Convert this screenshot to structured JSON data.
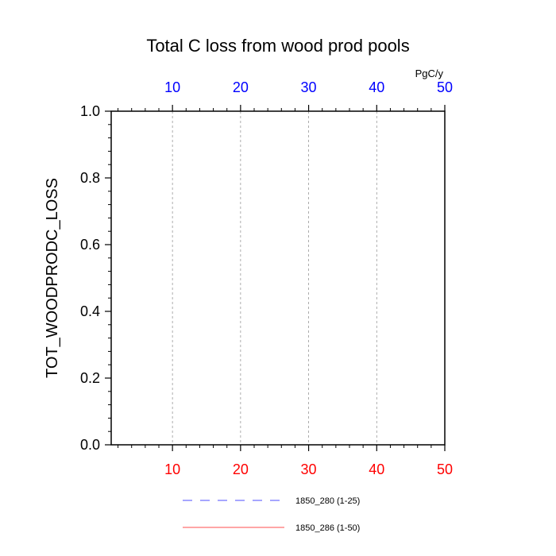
{
  "chart_data": {
    "type": "line",
    "title": "Total C loss from wood prod pools",
    "ylabel": "TOT_WOODPRODC_LOSS",
    "units": "PgC/y",
    "xlim": [
      1,
      50
    ],
    "ylim": [
      0.0,
      1.0
    ],
    "x_ticks_bottom": [
      10,
      20,
      30,
      40,
      50
    ],
    "x_ticks_top": [
      10,
      20,
      30,
      40,
      50
    ],
    "y_ticks": [
      "0.0",
      "0.2",
      "0.4",
      "0.6",
      "0.8",
      "1.0"
    ],
    "grid": "vertical dashed at major x ticks",
    "bottom_axis_color": "#ff0000",
    "top_axis_color": "#0000ff",
    "series": [
      {
        "name": "1850_280 (1-25)",
        "color": "#0000ff",
        "style": "dashed",
        "x_range": [
          1,
          25
        ],
        "values": [
          0,
          0,
          0,
          0,
          0,
          0,
          0,
          0,
          0,
          0,
          0,
          0,
          0,
          0,
          0,
          0,
          0,
          0,
          0,
          0,
          0,
          0,
          0,
          0,
          0
        ]
      },
      {
        "name": "1850_286 (1-50)",
        "color": "#ff0000",
        "style": "solid",
        "x_range": [
          1,
          50
        ],
        "values": [
          0,
          0,
          0,
          0,
          0,
          0,
          0,
          0,
          0,
          0,
          0,
          0,
          0,
          0,
          0,
          0,
          0,
          0,
          0,
          0,
          0,
          0,
          0,
          0,
          0,
          0,
          0,
          0,
          0,
          0,
          0,
          0,
          0,
          0,
          0,
          0,
          0,
          0,
          0,
          0,
          0,
          0,
          0,
          0,
          0,
          0,
          0,
          0,
          0,
          0
        ]
      }
    ]
  }
}
